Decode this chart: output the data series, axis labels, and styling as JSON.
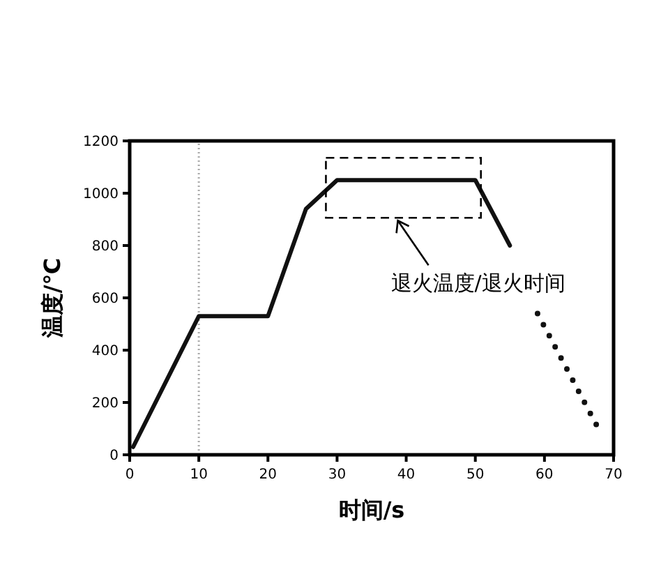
{
  "chart_data": {
    "type": "line",
    "xlabel": "时间/s",
    "ylabel": "温度/℃",
    "xlim": [
      0,
      70
    ],
    "ylim": [
      0,
      1200
    ],
    "xticks": [
      0,
      10,
      20,
      30,
      40,
      50,
      60,
      70
    ],
    "yticks": [
      0,
      200,
      400,
      600,
      800,
      1000,
      1200
    ],
    "series": [
      {
        "color": "#111111",
        "line_style": "solid",
        "x": [
          0.5,
          10,
          20,
          25.5,
          30,
          50,
          55
        ],
        "values": [
          30,
          530,
          530,
          940,
          1050,
          1050,
          800
        ]
      },
      {
        "color": "#111111",
        "line_style": "dotted",
        "x": [
          59,
          68
        ],
        "values": [
          540,
          90
        ]
      }
    ],
    "ref_lines": [
      {
        "axis": "x",
        "value": 10,
        "color": "#aaaaaa",
        "line_style": "dotted"
      }
    ],
    "annotations": [
      "退火温度/退火时间"
    ],
    "grid": false
  }
}
